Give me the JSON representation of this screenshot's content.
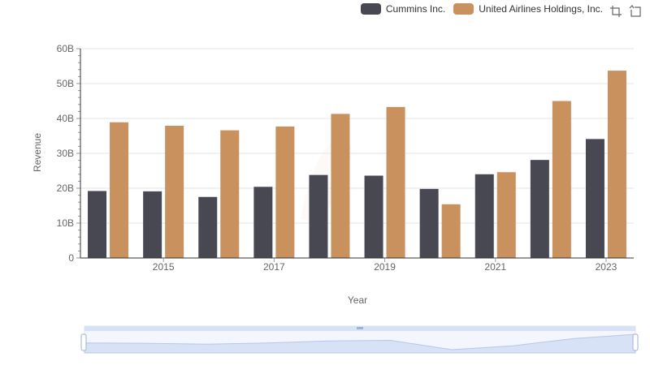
{
  "legend": {
    "series0": "Cummins Inc.",
    "series1": "United Airlines Holdings, Inc."
  },
  "toolbar": {
    "zoom_icon": "zoom-select-icon",
    "restore_icon": "restore-icon"
  },
  "colors": {
    "series0": "#484852",
    "series1": "#c8915e",
    "grid": "#e6e6e6",
    "axis": "#333333",
    "slider_fill": "#d7e2f7",
    "slider_border": "#b9c7e6"
  },
  "chart_data": {
    "type": "bar",
    "categories": [
      "2014",
      "2015",
      "2016",
      "2017",
      "2018",
      "2019",
      "2020",
      "2021",
      "2022",
      "2023"
    ],
    "x_tick_labels": [
      "2015",
      "2017",
      "2019",
      "2021",
      "2023"
    ],
    "series": [
      {
        "name": "Cummins Inc.",
        "values": [
          19.2,
          19.1,
          17.5,
          20.4,
          23.8,
          23.6,
          19.8,
          24.0,
          28.1,
          34.1
        ]
      },
      {
        "name": "United Airlines Holdings, Inc.",
        "values": [
          38.9,
          37.9,
          36.6,
          37.7,
          41.3,
          43.3,
          15.4,
          24.6,
          45.0,
          53.7
        ]
      }
    ],
    "y_ticks": [
      "0",
      "10B",
      "20B",
      "30B",
      "40B",
      "50B",
      "60B"
    ],
    "ylim": [
      0,
      60
    ],
    "xlabel": "Year",
    "ylabel": "Revenue",
    "grid": true,
    "legend_position": "top-right"
  }
}
